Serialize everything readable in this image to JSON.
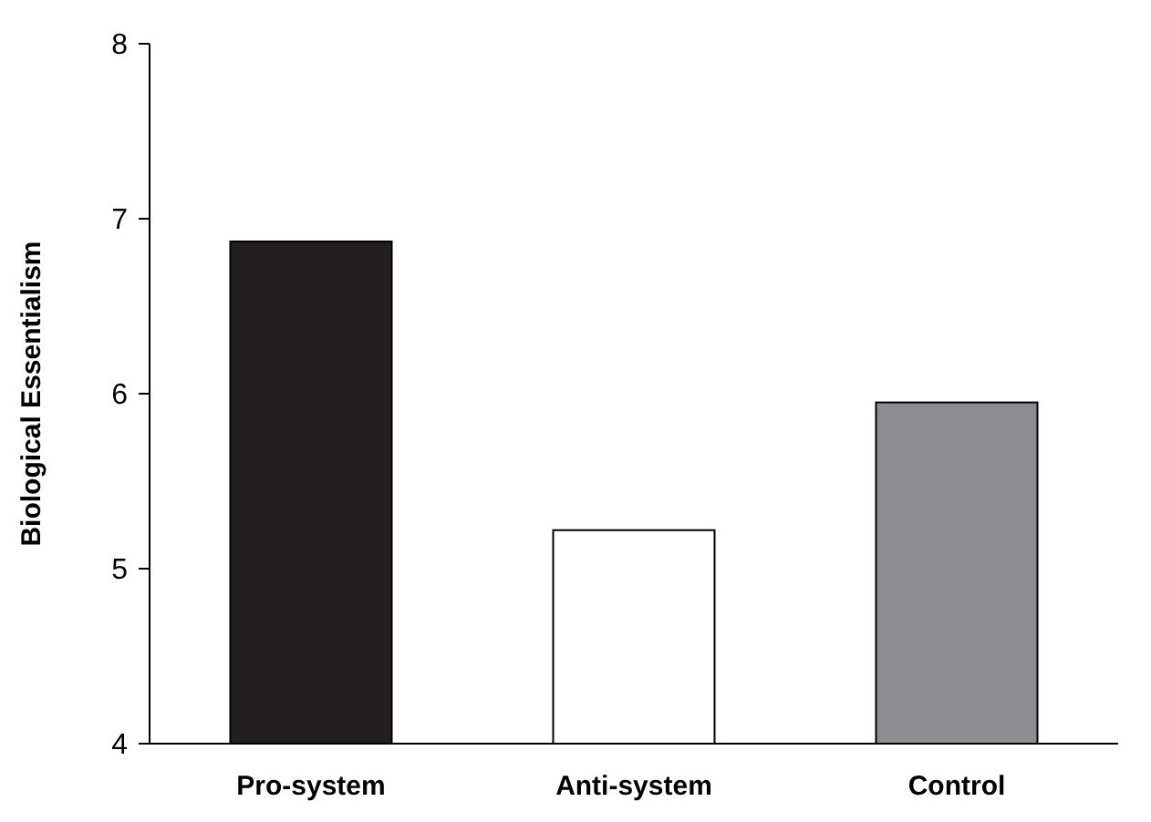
{
  "chart_data": {
    "type": "bar",
    "ylabel": "Biological Essentialism",
    "categories": [
      "Pro-system",
      "Anti-system",
      "Control"
    ],
    "values": [
      6.87,
      5.22,
      5.95
    ],
    "colors": [
      "#231f20",
      "#ffffff",
      "#8d8e91"
    ],
    "ylim": [
      4,
      8
    ],
    "yticks": [
      4,
      5,
      6,
      7,
      8
    ],
    "grid": false
  }
}
